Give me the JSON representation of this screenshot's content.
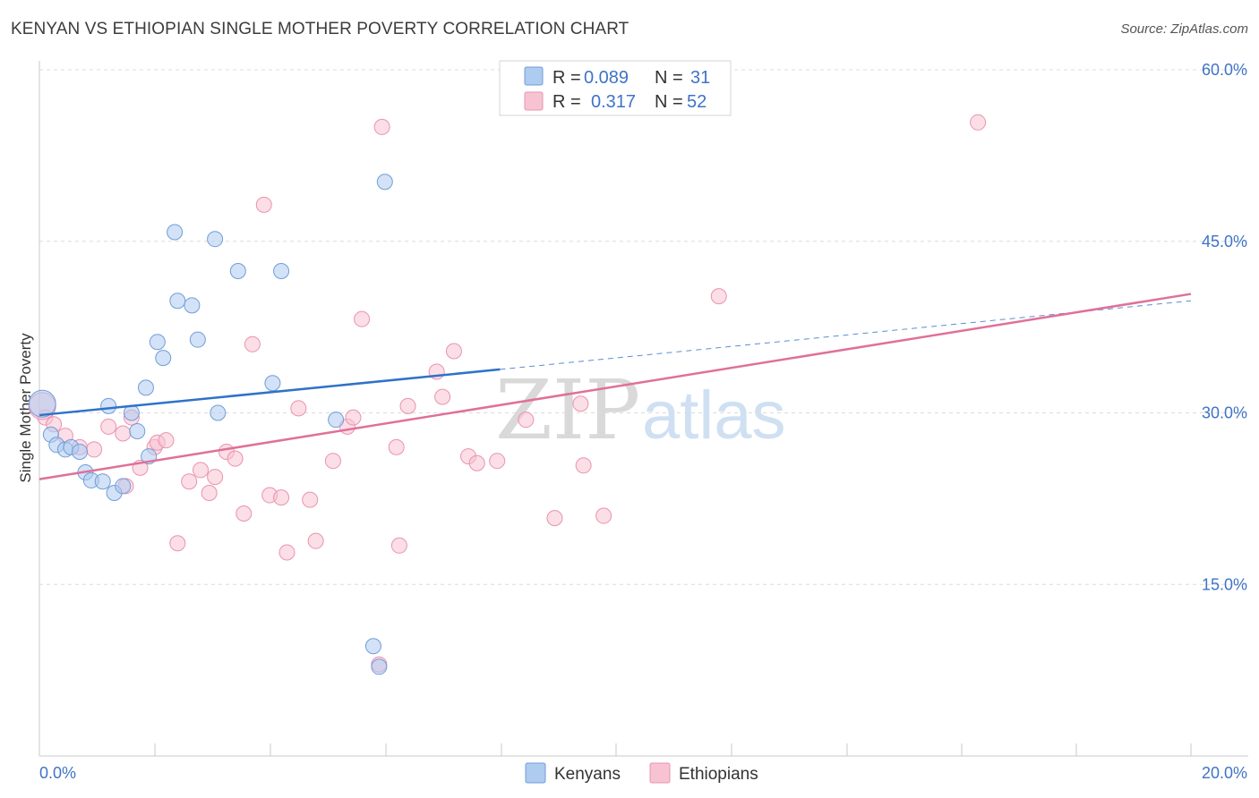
{
  "title": "KENYAN VS ETHIOPIAN SINGLE MOTHER POVERTY CORRELATION CHART",
  "source": "Source: ZipAtlas.com",
  "watermark": {
    "zip": "ZIP",
    "atlas": "atlas"
  },
  "colors": {
    "kenyan_fill": "#aecbf0",
    "kenyan_stroke": "#6f9ed8",
    "kenyan_line": "#2f72c8",
    "ethiopian_fill": "#f7c3d2",
    "ethiopian_stroke": "#e993b0",
    "ethiopian_line": "#e07098",
    "grid": "#dcdcdc",
    "axis_text": "#3f73c6"
  },
  "legend": {
    "rows": [
      {
        "r_label": "R =",
        "r_value": "0.089",
        "n_label": "N =",
        "n_value": "31"
      },
      {
        "r_label": "R =",
        "r_value": "0.317",
        "n_label": "N =",
        "n_value": "52"
      }
    ]
  },
  "bottom_legend": {
    "kenyans": "Kenyans",
    "ethiopians": "Ethiopians"
  },
  "chart_data": {
    "type": "scatter",
    "title": "KENYAN VS ETHIOPIAN SINGLE MOTHER POVERTY CORRELATION CHART",
    "xlabel": "",
    "ylabel": "Single Mother Poverty",
    "xlim": [
      0,
      20
    ],
    "ylim": [
      0,
      60
    ],
    "x_tick_labels": {
      "left": "0.0%",
      "right": "20.0%"
    },
    "y_ticks": [
      {
        "value": 15,
        "label": "15.0%"
      },
      {
        "value": 30,
        "label": "30.0%"
      },
      {
        "value": 45,
        "label": "45.0%"
      },
      {
        "value": 60,
        "label": "60.0%"
      }
    ],
    "grid": true,
    "legend_position": "top-center",
    "series": [
      {
        "name": "Kenyans",
        "R": 0.089,
        "N": 31,
        "trend": {
          "x0": 0,
          "y0": 29.8,
          "x1": 8.0,
          "y1": 33.8,
          "dashed_to_x": 20,
          "dashed_to_y": 39.8
        },
        "points": [
          [
            0.05,
            30.8,
            "large"
          ],
          [
            0.2,
            28.1
          ],
          [
            0.3,
            27.2
          ],
          [
            0.45,
            26.8
          ],
          [
            0.55,
            27.0
          ],
          [
            0.7,
            26.6
          ],
          [
            0.8,
            24.8
          ],
          [
            0.9,
            24.1
          ],
          [
            1.1,
            24.0
          ],
          [
            1.3,
            23.0
          ],
          [
            1.45,
            23.6
          ],
          [
            1.2,
            30.6
          ],
          [
            1.6,
            30.0
          ],
          [
            1.7,
            28.4
          ],
          [
            1.9,
            26.2
          ],
          [
            1.85,
            32.2
          ],
          [
            2.05,
            36.2
          ],
          [
            2.15,
            34.8
          ],
          [
            2.4,
            39.8
          ],
          [
            2.65,
            39.4
          ],
          [
            2.75,
            36.4
          ],
          [
            2.35,
            45.8
          ],
          [
            3.05,
            45.2
          ],
          [
            3.45,
            42.4
          ],
          [
            3.1,
            30.0
          ],
          [
            4.05,
            32.6
          ],
          [
            4.2,
            42.4
          ],
          [
            5.15,
            29.4
          ],
          [
            6.0,
            50.2
          ],
          [
            5.8,
            9.6
          ],
          [
            5.9,
            7.8
          ]
        ]
      },
      {
        "name": "Ethiopians",
        "R": 0.317,
        "N": 52,
        "trend": {
          "x0": 0,
          "y0": 24.2,
          "x1": 20,
          "y1": 40.4
        },
        "points": [
          [
            0.1,
            29.6
          ],
          [
            0.25,
            29.0
          ],
          [
            0.45,
            28.0
          ],
          [
            0.7,
            27.0
          ],
          [
            0.95,
            26.8
          ],
          [
            1.2,
            28.8
          ],
          [
            1.5,
            23.6
          ],
          [
            1.45,
            28.2
          ],
          [
            1.6,
            29.6
          ],
          [
            1.75,
            25.2
          ],
          [
            2.0,
            27.0
          ],
          [
            2.05,
            27.4
          ],
          [
            2.2,
            27.6
          ],
          [
            2.4,
            18.6
          ],
          [
            2.6,
            24.0
          ],
          [
            2.8,
            25.0
          ],
          [
            2.95,
            23.0
          ],
          [
            3.05,
            24.4
          ],
          [
            3.25,
            26.6
          ],
          [
            3.4,
            26.0
          ],
          [
            3.55,
            21.2
          ],
          [
            3.7,
            36.0
          ],
          [
            3.9,
            48.2
          ],
          [
            4.0,
            22.8
          ],
          [
            4.2,
            22.6
          ],
          [
            4.3,
            17.8
          ],
          [
            4.5,
            30.4
          ],
          [
            4.7,
            22.4
          ],
          [
            4.8,
            18.8
          ],
          [
            5.1,
            25.8
          ],
          [
            5.35,
            28.8
          ],
          [
            5.45,
            29.6
          ],
          [
            5.6,
            38.2
          ],
          [
            5.9,
            8.0
          ],
          [
            5.95,
            55.0
          ],
          [
            6.2,
            27.0
          ],
          [
            6.25,
            18.4
          ],
          [
            6.4,
            30.6
          ],
          [
            6.9,
            33.6
          ],
          [
            7.0,
            31.4
          ],
          [
            7.2,
            35.4
          ],
          [
            7.45,
            26.2
          ],
          [
            7.6,
            25.6
          ],
          [
            7.95,
            25.8
          ],
          [
            8.45,
            29.4
          ],
          [
            8.95,
            20.8
          ],
          [
            9.4,
            30.8
          ],
          [
            9.45,
            25.4
          ],
          [
            9.8,
            21.0
          ],
          [
            11.8,
            40.2
          ],
          [
            16.3,
            55.4
          ],
          [
            0.05,
            30.6,
            "large"
          ]
        ]
      }
    ]
  }
}
